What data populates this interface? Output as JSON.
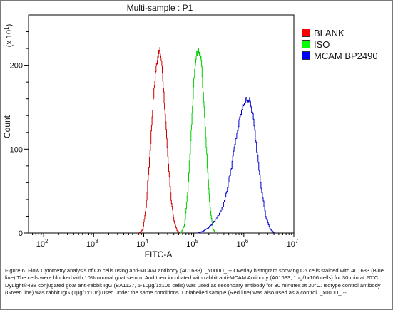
{
  "chart_data": {
    "type": "area",
    "title": "Multi-sample : P1",
    "xlabel": "FITC-A",
    "ylabel": "Count",
    "y_multiplier_label": "(x 10^1)",
    "x_scale": "log",
    "xlim": [
      50,
      10000000
    ],
    "ylim": [
      0,
      260
    ],
    "x_ticks": [
      {
        "value": 100,
        "base": "10",
        "exp": "2"
      },
      {
        "value": 1000,
        "base": "10",
        "exp": "3"
      },
      {
        "value": 10000,
        "base": "10",
        "exp": "4"
      },
      {
        "value": 100000,
        "base": "10",
        "exp": "5"
      },
      {
        "value": 1000000,
        "base": "10",
        "exp": "6"
      },
      {
        "value": 10000000,
        "base": "10",
        "exp": "7"
      }
    ],
    "y_ticks": [
      0,
      100,
      200
    ],
    "grid": false,
    "legend_position": "right",
    "series": [
      {
        "name": "BLANK",
        "color": "#cc0000",
        "swatch": "#ff0000",
        "x": [
          8000,
          9500,
          11000,
          13000,
          15000,
          17000,
          19000,
          21000,
          23000,
          26000,
          30000,
          35000,
          40000,
          46000,
          52000
        ],
        "y": [
          0,
          4,
          30,
          90,
          150,
          190,
          212,
          218,
          200,
          150,
          90,
          40,
          14,
          3,
          0
        ]
      },
      {
        "name": "ISO",
        "color": "#00cc00",
        "swatch": "#00ff00",
        "x": [
          55000,
          65000,
          75000,
          88000,
          100000,
          112000,
          125000,
          140000,
          160000,
          185000,
          210000,
          240000,
          270000
        ],
        "y": [
          0,
          10,
          50,
          120,
          185,
          212,
          218,
          205,
          150,
          80,
          30,
          5,
          0
        ]
      },
      {
        "name": "MCAM BP2490",
        "color": "#0000cc",
        "swatch": "#0000ff",
        "x": [
          120000,
          150000,
          190000,
          240000,
          300000,
          380000,
          470000,
          580000,
          700000,
          850000,
          1000000,
          1150000,
          1300000,
          1500000,
          1800000,
          2200000,
          2700000,
          3300000,
          4000000
        ],
        "y": [
          0,
          2,
          6,
          12,
          20,
          32,
          55,
          85,
          115,
          140,
          155,
          160,
          158,
          140,
          100,
          55,
          20,
          5,
          0
        ]
      }
    ]
  },
  "caption": "Figure 6. Flow Cytometry analysis of C6 cells using anti-MCAM antibody (A01683). _x000D_ -- Overlay histogram showing C6 cells stained with A01683 (Blue line).The cells were blocked with 10% normal goat serum. And then incubated with rabbit anti-MCAM Antibody (A01683, 1µg/1x106 cells) for 30 min at 20°C. DyLight®488 conjugated goat anti-rabbit IgG (BA1127, 5-10µg/1x106 cells) was used as secondary antibody for 30 minutes at 20°C. Isotype control antibody (Green line) was rabbit IgG (1µg/1x106) used under the same conditions. Unlabelled sample (Red line) was also used as a control. _x000D_ --"
}
